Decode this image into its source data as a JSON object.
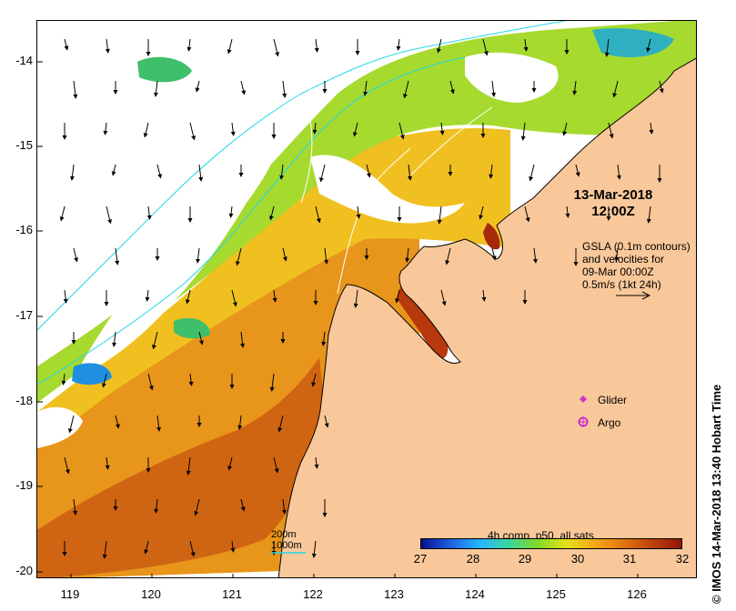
{
  "map": {
    "lat_ticks": [
      "-14",
      "-15",
      "-16",
      "-17",
      "-18",
      "-19",
      "-20"
    ],
    "lon_ticks": [
      "119",
      "120",
      "121",
      "122",
      "123",
      "124",
      "125",
      "126"
    ],
    "lon_range": [
      118.6,
      126.7
    ],
    "lat_range": [
      -13.55,
      -20.05
    ],
    "land_color": "#f9c89a",
    "isobath_color": "#22d8e6",
    "contour_color": "#ffffff"
  },
  "timestamp": {
    "date": "13-Mar-2018",
    "time": "12:00Z"
  },
  "gsla_note": {
    "line1": "GSLA (0.1m contours)",
    "line2": "and velocities for",
    "line3": "09-Mar 00:00Z",
    "line4": "0.5m/s (1kt 24h)"
  },
  "legend": {
    "glider": "Glider",
    "argo": "Argo",
    "marker_color": "#cc33cc"
  },
  "depth_legend": {
    "d200": "200m",
    "d1000": "1000m"
  },
  "colorbar": {
    "title": "4h comp, p50, all sats",
    "ticks": [
      "27",
      "28",
      "29",
      "30",
      "31",
      "32"
    ],
    "range": [
      27,
      32
    ],
    "colors": [
      "#0a0f8c",
      "#1f5fe0",
      "#25b4ff",
      "#3ad6a0",
      "#7fd82a",
      "#e4e21a",
      "#f6a81b",
      "#e27512",
      "#c0400b",
      "#8f1505"
    ]
  },
  "copyright": "© IMOS 14-Mar-2018 13:40 Hobart Time"
}
